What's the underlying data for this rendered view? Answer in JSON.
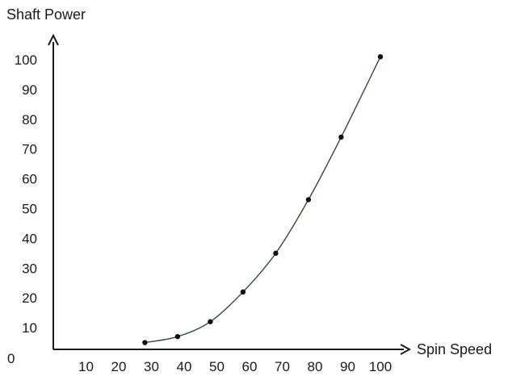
{
  "chart_data": {
    "type": "line",
    "title": "",
    "xlabel": "Spin Speed",
    "ylabel": "Shaft Power",
    "origin_label": "0",
    "x_ticks": [
      "10",
      "20",
      "30",
      "40",
      "50",
      "60",
      "70",
      "80",
      "90",
      "100"
    ],
    "y_ticks": [
      "10",
      "20",
      "30",
      "40",
      "50",
      "60",
      "70",
      "80",
      "90",
      "100"
    ],
    "xlim": [
      0,
      100
    ],
    "ylim": [
      0,
      100
    ],
    "grid": false,
    "series": [
      {
        "x": [
          28,
          38,
          48,
          58,
          68,
          78,
          88,
          100
        ],
        "y": [
          5,
          7,
          12,
          22,
          35,
          53,
          74,
          101
        ],
        "markers": true,
        "smooth": true
      }
    ],
    "colors": {
      "axis": "#1a1a1a",
      "curve": "#2e4a36",
      "points": "#111111"
    }
  }
}
